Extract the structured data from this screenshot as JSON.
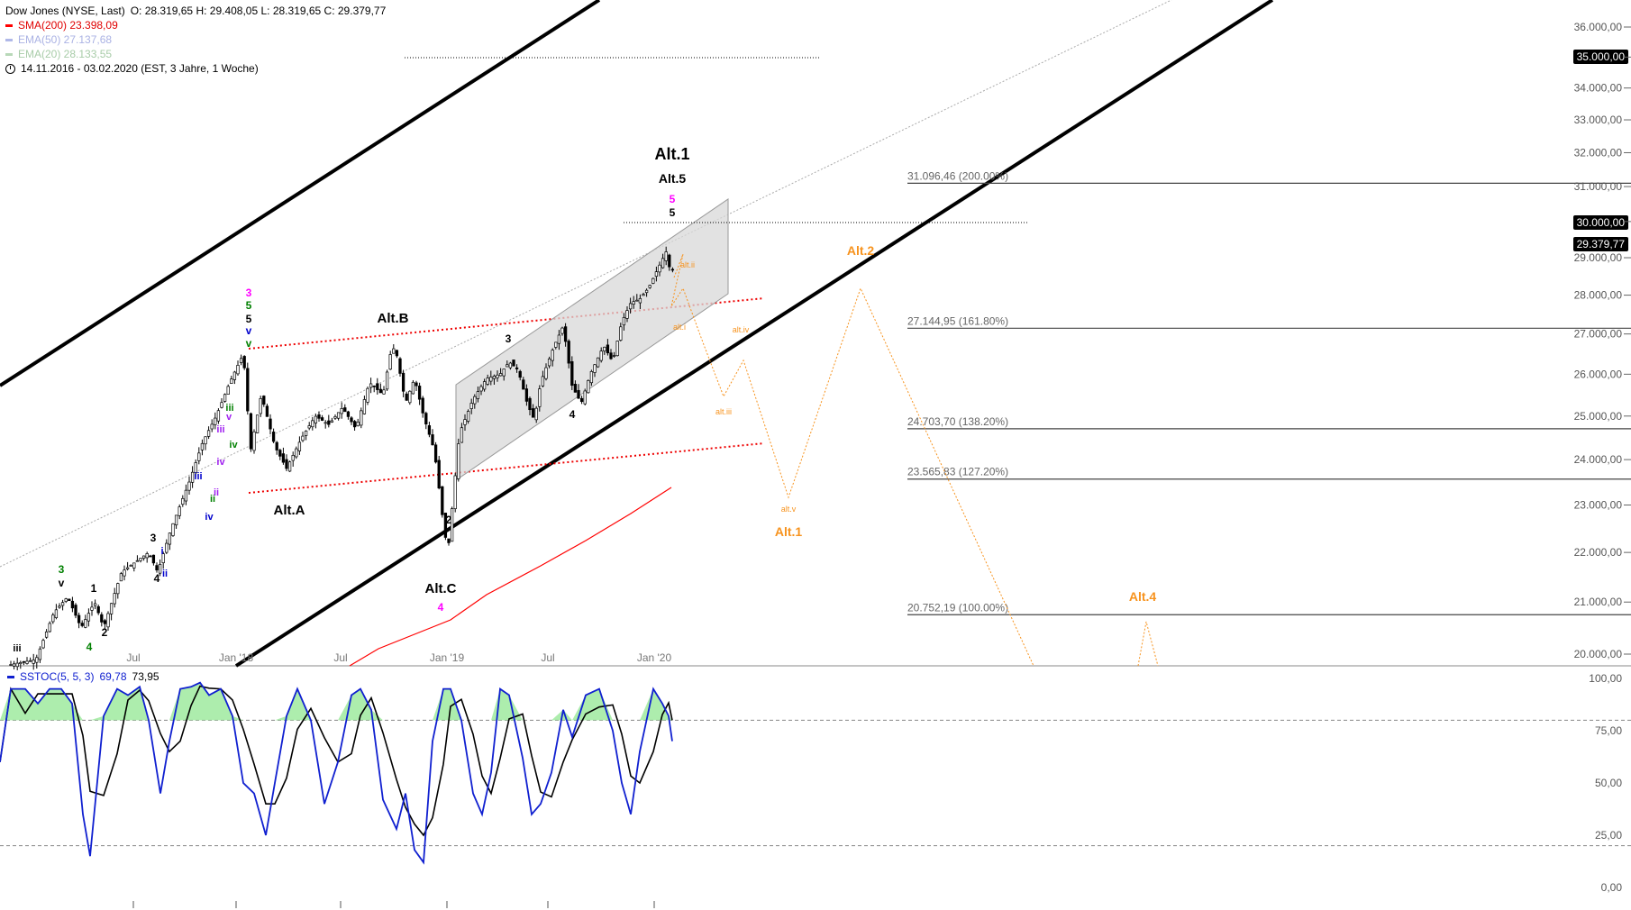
{
  "header": {
    "title": "Dow Jones (NYSE, Last)",
    "ohlc": "O: 28.319,65  H: 29.408,05  L: 28.319,65  C: 29.379,77",
    "sma200": "SMA(200)  23.398,09",
    "ema50": "EMA(50)  27.137,68",
    "ema20": "EMA(20)  28.133,55",
    "period": "14.11.2016 - 03.02.2020    (EST, 3 Jahre, 1 Woche)"
  },
  "stoch_legend": {
    "label": "SSTOC(5, 5, 3)",
    "v1": "69,78",
    "v2": "73,95"
  },
  "price_tags": {
    "p35000": "35.000,00",
    "p30000": "30.000,00",
    "last": "29.379,77"
  },
  "colors": {
    "sma": "#ff0000",
    "ema50": "#b0b8e8",
    "ema20": "#b8d8b8",
    "forecast": "#f7931e",
    "stoch_k": "#1020d0",
    "stoch_d": "#000000",
    "stoch_fill": "#98e898"
  },
  "chart_data": {
    "type": "candlestick",
    "x": [
      "2016-11-14",
      "2017-07",
      "2018-01",
      "2018-07",
      "2019-01",
      "2019-07",
      "2020-01"
    ],
    "x_tick_labels": [
      "Jul",
      "Jan '18",
      "Jul",
      "Jan '19",
      "Jul",
      "Jan '20"
    ],
    "y_tick_labels": [
      "36.000,00",
      "35.000,00",
      "34.000,00",
      "33.000,00",
      "32.000,00",
      "31.000,00",
      "30.000,00",
      "29.000,00",
      "28.000,00",
      "27.000,00",
      "26.000,00",
      "25.000,00",
      "24.000,00",
      "23.000,00",
      "22.000,00",
      "21.000,00",
      "20.000,00"
    ],
    "y_scale": "log",
    "ylim": [
      19500,
      36500
    ],
    "last_close": 29379.77,
    "fib_levels": [
      {
        "label": "31.096,46 (200.00%)",
        "value": 31096.46
      },
      {
        "label": "27.144,95 (161.80%)",
        "value": 27144.95
      },
      {
        "label": "24.703,70 (138.20%)",
        "value": 24703.7
      },
      {
        "label": "23.565,83 (127.20%)",
        "value": 23565.83
      },
      {
        "label": "20.752,19 (100.00%)",
        "value": 20752.19
      }
    ],
    "wave_labels": [
      {
        "text": "Alt.1",
        "color": "#000000"
      },
      {
        "text": "Alt.5",
        "color": "#000000"
      },
      {
        "text": "5",
        "color": "#ff00ff"
      },
      {
        "text": "5",
        "color": "#000000"
      },
      {
        "text": "Alt.B",
        "color": "#000000"
      },
      {
        "text": "Alt.A",
        "color": "#000000"
      },
      {
        "text": "Alt.C",
        "color": "#000000"
      },
      {
        "text": "4",
        "color": "#ff00ff"
      },
      {
        "text": "3",
        "color": "#ff00ff"
      },
      {
        "text": "5",
        "color": "#008000"
      },
      {
        "text": "5",
        "color": "#000000"
      },
      {
        "text": "v",
        "color": "#0000cc"
      },
      {
        "text": "v",
        "color": "#008000"
      },
      {
        "text": "3",
        "color": "#000000"
      },
      {
        "text": "4",
        "color": "#000000"
      },
      {
        "text": "2",
        "color": "#000000"
      },
      {
        "text": "1",
        "color": "#000000"
      },
      {
        "text": "2",
        "color": "#000000"
      },
      {
        "text": "3",
        "color": "#000000"
      },
      {
        "text": "4",
        "color": "#000000"
      },
      {
        "text": "3",
        "color": "#008000"
      },
      {
        "text": "v",
        "color": "#000000"
      },
      {
        "text": "4",
        "color": "#008000"
      },
      {
        "text": "iii",
        "color": "#0000cc"
      },
      {
        "text": "iv",
        "color": "#0000cc"
      },
      {
        "text": "ii",
        "color": "#0000cc"
      },
      {
        "text": "i",
        "color": "#0000cc"
      },
      {
        "text": "iii",
        "color": "#008000"
      },
      {
        "text": "iv",
        "color": "#008000"
      },
      {
        "text": "v",
        "color": "#a020f0"
      },
      {
        "text": "iii",
        "color": "#a020f0"
      },
      {
        "text": "iv",
        "color": "#a020f0"
      },
      {
        "text": "ii",
        "color": "#008000"
      },
      {
        "text": "ii",
        "color": "#a020f0"
      },
      {
        "text": "iii",
        "color": "#000000"
      }
    ],
    "forecast_labels": [
      "Alt.2",
      "Alt.1",
      "Alt.4",
      "alt.ii",
      "alt.i",
      "alt.iv",
      "alt.iii",
      "alt.v"
    ],
    "sma200_start": 19500,
    "sma200_end": 23398.09,
    "stochastic": {
      "name": "SSTOC(5, 5, 3)",
      "k_last": 69.78,
      "d_last": 73.95,
      "y_tick_labels": [
        "100,00",
        "75,00",
        "50,00",
        "25,00",
        "0,00"
      ],
      "levels": [
        80,
        20
      ],
      "ylim": [
        0,
        100
      ]
    }
  }
}
